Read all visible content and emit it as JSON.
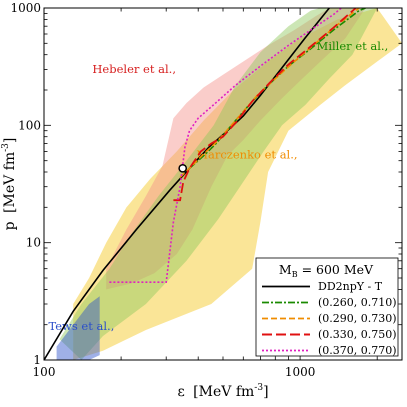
{
  "chart_data": {
    "type": "line",
    "xscale": "log",
    "yscale": "log",
    "xlim": [
      100,
      2500
    ],
    "ylim": [
      1,
      1000
    ],
    "xlabel_sym": "ε",
    "xlabel_unit": "[MeV fm",
    "xlabel_exp": "-3",
    "xlabel_close": "]",
    "ylabel_sym": "p",
    "ylabel_unit": "[MeV fm",
    "ylabel_exp": "-3",
    "ylabel_close": "]",
    "xticks": [
      {
        "value": 100,
        "label": "100"
      },
      {
        "value": 1000,
        "label": "1000"
      }
    ],
    "yticks": [
      {
        "value": 1,
        "label": "1"
      },
      {
        "value": 10,
        "label": "10"
      },
      {
        "value": 100,
        "label": "100"
      },
      {
        "value": 1000,
        "label": "1000"
      }
    ],
    "bands": [
      {
        "label": "Marczenko et al.,",
        "color": "#f5c518",
        "label_color": "#f08c00",
        "label_pos": [
          620,
          52
        ],
        "upper": [
          [
            130,
            3
          ],
          [
            150,
            5
          ],
          [
            175,
            10
          ],
          [
            210,
            20
          ],
          [
            260,
            35
          ],
          [
            330,
            60
          ],
          [
            420,
            110
          ],
          [
            550,
            200
          ],
          [
            750,
            350
          ],
          [
            1000,
            550
          ],
          [
            1400,
            800
          ],
          [
            2000,
            1000
          ]
        ],
        "lower": [
          [
            2500,
            500
          ],
          [
            2000,
            350
          ],
          [
            1500,
            220
          ],
          [
            1200,
            150
          ],
          [
            900,
            90
          ],
          [
            750,
            40
          ],
          [
            700,
            15
          ],
          [
            650,
            6
          ],
          [
            450,
            3
          ],
          [
            250,
            1.8
          ],
          [
            170,
            1.2
          ],
          [
            130,
            1
          ]
        ]
      },
      {
        "label": "Hebeler et al.,",
        "color": "#f4908a",
        "label_color": "#d61e1e",
        "label_pos": [
          225,
          280
        ],
        "upper": [
          [
            175,
            6
          ],
          [
            210,
            13
          ],
          [
            250,
            25
          ],
          [
            290,
            45
          ],
          [
            320,
            115
          ],
          [
            360,
            155
          ],
          [
            420,
            210
          ],
          [
            500,
            270
          ],
          [
            600,
            350
          ],
          [
            750,
            480
          ],
          [
            950,
            650
          ],
          [
            1150,
            850
          ],
          [
            1300,
            1000
          ]
        ],
        "lower": [
          [
            1800,
            1000
          ],
          [
            1500,
            550
          ],
          [
            1200,
            350
          ],
          [
            1000,
            240
          ],
          [
            850,
            170
          ],
          [
            700,
            110
          ],
          [
            600,
            75
          ],
          [
            520,
            55
          ],
          [
            450,
            30
          ],
          [
            380,
            13
          ],
          [
            330,
            8
          ],
          [
            270,
            5.5
          ],
          [
            220,
            4.5
          ],
          [
            175,
            4
          ]
        ]
      },
      {
        "label": "Miller et al.,",
        "color": "#8fc85a",
        "label_color": "#1a8a00",
        "label_pos": [
          1600,
          440
        ],
        "upper": [
          [
            115,
            1.5
          ],
          [
            140,
            3
          ],
          [
            180,
            6
          ],
          [
            220,
            12
          ],
          [
            280,
            25
          ],
          [
            360,
            50
          ],
          [
            460,
            100
          ],
          [
            560,
            220
          ],
          [
            700,
            420
          ],
          [
            900,
            700
          ],
          [
            1100,
            950
          ],
          [
            1200,
            1000
          ]
        ],
        "lower": [
          [
            2000,
            1000
          ],
          [
            1800,
            650
          ],
          [
            1600,
            400
          ],
          [
            1300,
            250
          ],
          [
            1050,
            150
          ],
          [
            850,
            100
          ],
          [
            720,
            60
          ],
          [
            600,
            33
          ],
          [
            480,
            16
          ],
          [
            360,
            7
          ],
          [
            250,
            3
          ],
          [
            170,
            1.6
          ],
          [
            140,
            1
          ]
        ]
      },
      {
        "label": "Tews et al.,",
        "color": "#2b4fc9",
        "label_color": "#2b4fc9",
        "label_pos": [
          140,
          1.8
        ],
        "upper": [
          [
            112,
            1.3
          ],
          [
            130,
            2
          ],
          [
            150,
            3
          ],
          [
            165,
            3.5
          ]
        ],
        "lower": [
          [
            165,
            1.1
          ],
          [
            150,
            1
          ],
          [
            112,
            1
          ]
        ]
      }
    ],
    "series": [
      {
        "name": "DD2npY - T",
        "color": "#000000",
        "dash": "",
        "width": 1.6,
        "points": [
          [
            100,
            1
          ],
          [
            130,
            2.6
          ],
          [
            170,
            5.8
          ],
          [
            230,
            13
          ],
          [
            310,
            28
          ],
          [
            370,
            43
          ],
          [
            440,
            65
          ],
          [
            520,
            90
          ],
          [
            600,
            120
          ],
          [
            700,
            180
          ],
          [
            850,
            310
          ],
          [
            1050,
            560
          ],
          [
            1300,
            1000
          ]
        ]
      },
      {
        "name": "(0.260, 0.710)",
        "color": "#1a8a00",
        "dash": "7 2 2 2",
        "width": 1.6,
        "points": [
          [
            370,
            43
          ],
          [
            420,
            55
          ],
          [
            470,
            70
          ],
          [
            560,
            110
          ],
          [
            650,
            160
          ],
          [
            750,
            220
          ],
          [
            900,
            320
          ],
          [
            1100,
            450
          ],
          [
            1350,
            650
          ],
          [
            1700,
            950
          ],
          [
            1800,
            1000
          ]
        ]
      },
      {
        "name": "(0.290, 0.730)",
        "color": "#f08c00",
        "dash": "6 3",
        "width": 1.6,
        "points": [
          [
            340,
            36
          ],
          [
            370,
            43
          ],
          [
            420,
            57
          ],
          [
            480,
            75
          ],
          [
            580,
            120
          ],
          [
            680,
            180
          ],
          [
            800,
            250
          ],
          [
            950,
            350
          ],
          [
            1150,
            500
          ],
          [
            1400,
            720
          ],
          [
            1700,
            1000
          ]
        ]
      },
      {
        "name": "(0.330, 0.750)",
        "color": "#e01010",
        "dash": "10 4",
        "width": 1.8,
        "points": [
          [
            320,
            23
          ],
          [
            340,
            23
          ],
          [
            350,
            33
          ],
          [
            370,
            43
          ],
          [
            410,
            60
          ],
          [
            450,
            70
          ],
          [
            500,
            80
          ],
          [
            560,
            105
          ],
          [
            650,
            160
          ],
          [
            760,
            230
          ],
          [
            900,
            330
          ],
          [
            1100,
            470
          ],
          [
            1350,
            680
          ],
          [
            1650,
            1000
          ]
        ]
      },
      {
        "name": "(0.370, 0.770)",
        "color": "#e020c0",
        "dash": "2 2",
        "width": 1.6,
        "points": [
          [
            180,
            4.6
          ],
          [
            300,
            4.6
          ],
          [
            320,
            15
          ],
          [
            340,
            30
          ],
          [
            355,
            65
          ],
          [
            370,
            90
          ],
          [
            400,
            115
          ],
          [
            460,
            150
          ],
          [
            560,
            220
          ],
          [
            700,
            320
          ],
          [
            900,
            480
          ],
          [
            1100,
            650
          ],
          [
            1350,
            880
          ],
          [
            1450,
            1000
          ]
        ]
      }
    ],
    "marker": {
      "x": 348,
      "y": 43
    },
    "legend": {
      "title_m": "M",
      "title_sub": "B",
      "title_rest": " = 600 MeV",
      "position": "bottom-right"
    }
  }
}
